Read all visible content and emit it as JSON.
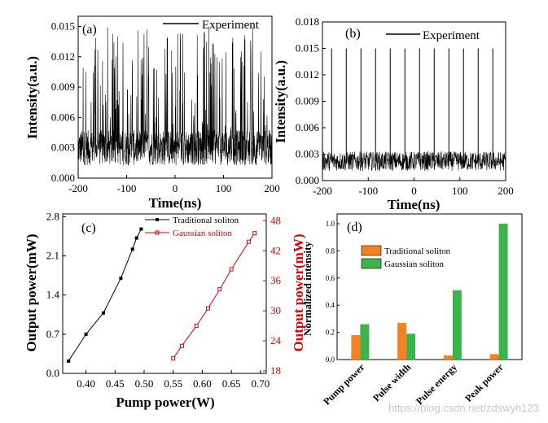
{
  "chart_data": [
    {
      "panel": "(a)",
      "type": "line",
      "legend": [
        "Experiment"
      ],
      "xlabel": "Time(ns)",
      "ylabel": "Intensity(a.u.)",
      "xlim": [
        -200,
        200
      ],
      "ylim": [
        0.0,
        0.016
      ],
      "xticks": [
        "-200",
        "-100",
        "0",
        "100",
        "200"
      ],
      "yticks": [
        "0.000",
        "0.003",
        "0.006",
        "0.009",
        "0.012",
        "0.015"
      ],
      "series": [
        {
          "name": "Experiment",
          "description_level": "noisy continuum baseline ~0.003 with irregular peaks up to 0.015",
          "baseline": 0.003,
          "max": 0.015
        }
      ]
    },
    {
      "panel": "(b)",
      "type": "line",
      "legend": [
        "Experiment"
      ],
      "xlabel": "Time(ns)",
      "ylabel": "Intensity(a.u.)",
      "xlim": [
        -200,
        200
      ],
      "ylim": [
        0.0,
        0.018
      ],
      "xticks": [
        "-200",
        "-100",
        "0",
        "100",
        "200"
      ],
      "yticks": [
        "0.000",
        "0.003",
        "0.006",
        "0.009",
        "0.012",
        "0.015",
        "0.018"
      ],
      "series": [
        {
          "name": "Experiment",
          "baseline": 0.0022,
          "pulse_times": [
            -180,
            -148,
            -116,
            -84,
            -52,
            -20,
            12,
            44,
            76,
            108,
            140,
            172
          ],
          "pulse_heights": [
            0.015,
            0.015,
            0.015,
            0.015,
            0.015,
            0.015,
            0.015,
            0.015,
            0.015,
            0.015,
            0.015,
            0.015
          ]
        }
      ]
    },
    {
      "panel": "(c)",
      "type": "line",
      "xlabel": "Pump power(W)",
      "ylabel_left": "Output  power(mW)",
      "ylabel_right": "Output power(mW)",
      "xlim": [
        0.36,
        0.71
      ],
      "ylim_left": [
        0.0,
        2.8
      ],
      "ylim_right": [
        18,
        50
      ],
      "xticks": [
        "0.40",
        "0.45",
        "0.50",
        "0.55",
        "0.60",
        "0.65",
        "0.70"
      ],
      "yticks_left": [
        "0.0",
        "0.7",
        "1.4",
        "2.1",
        "2.8"
      ],
      "yticks_right": [
        "18",
        "24",
        "30",
        "36",
        "42",
        "48"
      ],
      "series": [
        {
          "name": "Traditional soliton",
          "axis": "left",
          "color": "#000000",
          "x": [
            0.37,
            0.4,
            0.43,
            0.46,
            0.48,
            0.487,
            0.495
          ],
          "y": [
            0.22,
            0.7,
            1.08,
            1.7,
            2.22,
            2.42,
            2.58
          ]
        },
        {
          "name": "Gaussian soliton",
          "axis": "right",
          "color": "#e00000",
          "x": [
            0.55,
            0.565,
            0.59,
            0.61,
            0.63,
            0.65,
            0.68,
            0.69
          ],
          "y": [
            20.5,
            23.0,
            27.0,
            30.5,
            34.3,
            38.3,
            43.8,
            45.5
          ]
        }
      ]
    },
    {
      "panel": "(d)",
      "type": "bar",
      "ylabel": "Normalized intensity",
      "ylim": [
        0.0,
        1.0
      ],
      "yticks": [
        "0.0",
        "0.2",
        "0.4",
        "0.6",
        "0.8",
        "1.0"
      ],
      "categories": [
        "Pump power",
        "Pulse width",
        "Pulse energy",
        "Peak power"
      ],
      "series": [
        {
          "name": "Traditional soliton",
          "color": "#f5821f",
          "values": [
            0.18,
            0.27,
            0.03,
            0.04
          ]
        },
        {
          "name": "Gaussian soliton",
          "color": "#3cb44b",
          "values": [
            0.26,
            0.19,
            0.51,
            1.0
          ]
        }
      ]
    }
  ],
  "watermark": "https://blog.csdn.net/zdswyh123"
}
